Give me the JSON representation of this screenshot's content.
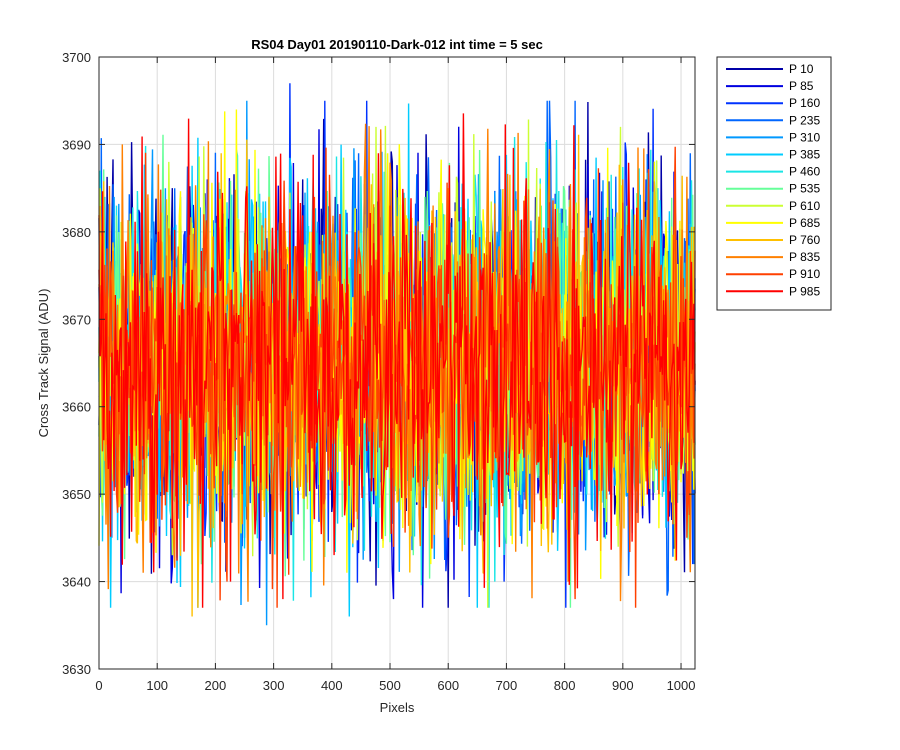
{
  "chart_data": {
    "type": "line",
    "title": "RS04 Day01 20190110-Dark-012 int time = 5 sec",
    "xlabel": "Pixels",
    "ylabel": "Cross Track Signal (ADU)",
    "xlim": [
      0,
      1024
    ],
    "ylim": [
      3630,
      3700
    ],
    "xticks": [
      0,
      100,
      200,
      300,
      400,
      500,
      600,
      700,
      800,
      900,
      1000
    ],
    "yticks": [
      3630,
      3640,
      3650,
      3660,
      3670,
      3680,
      3690,
      3700
    ],
    "grid": true,
    "legend_position": "outside-top-right",
    "series_summary": {
      "typical_mean": 3665,
      "typical_range": [
        3645,
        3685
      ],
      "min_observed": 3635,
      "max_observed": 3697
    },
    "series": [
      {
        "name": "P 10",
        "color": "#0000a8",
        "peaks": [
          [
            125,
            3685
          ],
          [
            350,
            3686
          ],
          [
            405,
            3684
          ]
        ],
        "dips": [
          [
            40,
            3646
          ],
          [
            250,
            3645
          ]
        ]
      },
      {
        "name": "P 85",
        "color": "#0000e0",
        "peaks": [
          [
            185,
            3686
          ],
          [
            555,
            3686
          ],
          [
            940,
            3686
          ]
        ],
        "dips": [
          [
            555,
            3637
          ],
          [
            505,
            3638
          ]
        ]
      },
      {
        "name": "P 160",
        "color": "#0033ff",
        "peaks": [
          [
            328,
            3697
          ],
          [
            388,
            3695
          ]
        ],
        "dips": [
          [
            695,
            3640
          ],
          [
            1020,
            3642
          ]
        ]
      },
      {
        "name": "P 235",
        "color": "#0066ff",
        "peaks": [
          [
            1015,
            3689
          ],
          [
            445,
            3689
          ]
        ],
        "dips": [
          [
            978,
            3639
          ],
          [
            1022,
            3642
          ]
        ]
      },
      {
        "name": "P 310",
        "color": "#0099ff",
        "peaks": [
          [
            25,
            3684
          ],
          [
            140,
            3684
          ]
        ],
        "dips": [
          [
            287,
            3635
          ],
          [
            170,
            3637
          ]
        ]
      },
      {
        "name": "P 385",
        "color": "#00ccff",
        "peaks": [
          [
            10,
            3684
          ],
          [
            960,
            3685
          ]
        ],
        "dips": [
          [
            20,
            3637
          ],
          [
            430,
            3636
          ]
        ]
      },
      {
        "name": "P 460",
        "color": "#1ae5e5",
        "peaks": [
          [
            30,
            3683
          ],
          [
            110,
            3681
          ]
        ],
        "dips": [
          [
            160,
            3640
          ],
          [
            680,
            3640
          ]
        ]
      },
      {
        "name": "P 535",
        "color": "#66ff99",
        "peaks": [
          [
            560,
            3684
          ],
          [
            760,
            3683
          ]
        ],
        "dips": [
          [
            300,
            3645
          ],
          [
            540,
            3643
          ]
        ]
      },
      {
        "name": "P 610",
        "color": "#ccff33",
        "peaks": [
          [
            120,
            3688
          ],
          [
            475,
            3692
          ],
          [
            895,
            3692
          ]
        ],
        "dips": [
          [
            125,
            3643
          ],
          [
            735,
            3644
          ]
        ]
      },
      {
        "name": "P 685",
        "color": "#ffff00",
        "peaks": [
          [
            235,
            3694
          ],
          [
            495,
            3689
          ]
        ],
        "dips": [
          [
            425,
            3641
          ],
          [
            570,
            3642
          ]
        ]
      },
      {
        "name": "P 760",
        "color": "#ffc000",
        "peaks": [
          [
            210,
            3689
          ],
          [
            600,
            3685
          ]
        ],
        "dips": [
          [
            160,
            3636
          ],
          [
            660,
            3641
          ]
        ]
      },
      {
        "name": "P 835",
        "color": "#ff8000",
        "peaks": [
          [
            40,
            3690
          ],
          [
            900,
            3686
          ]
        ],
        "dips": [
          [
            75,
            3641
          ],
          [
            805,
            3640
          ]
        ]
      },
      {
        "name": "P 910",
        "color": "#ff4000",
        "peaks": [
          [
            370,
            3684
          ],
          [
            500,
            3683
          ]
        ],
        "dips": [
          [
            818,
            3638
          ],
          [
            220,
            3640
          ]
        ]
      },
      {
        "name": "P 985",
        "color": "#ff0000",
        "peaks": [
          [
            315,
            3684
          ],
          [
            480,
            3689
          ]
        ],
        "dips": [
          [
            315,
            3638
          ],
          [
            225,
            3640
          ]
        ]
      }
    ]
  }
}
